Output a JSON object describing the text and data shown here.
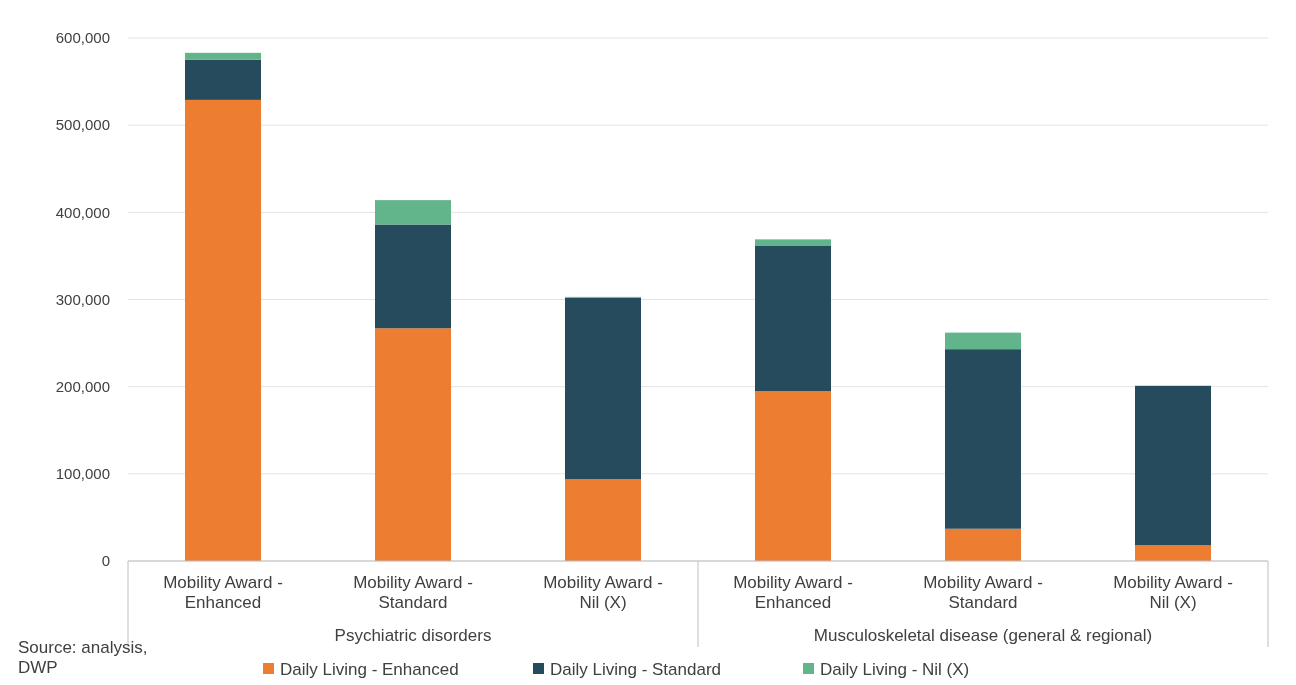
{
  "chart_data": {
    "type": "bar",
    "stacked": true,
    "categories": [
      "Mobility Award - Enhanced",
      "Mobility Award - Standard",
      "Mobility Award - Nil (X)",
      "Mobility Award - Enhanced",
      "Mobility Award - Standard",
      "Mobility Award - Nil (X)"
    ],
    "series": [
      {
        "name": "Daily Living - Enhanced",
        "color": "#ed7d31",
        "values": [
          529000,
          267000,
          94000,
          195000,
          37000,
          18000
        ]
      },
      {
        "name": "Daily Living - Standard",
        "color": "#264b5d",
        "values": [
          46000,
          119000,
          208000,
          167000,
          206000,
          183000
        ]
      },
      {
        "name": "Daily Living - Nil (X)",
        "color": "#62b58a",
        "values": [
          8000,
          28000,
          1000,
          7000,
          19000,
          0
        ]
      }
    ],
    "ylim": [
      0,
      600000
    ],
    "yticks": [
      {
        "value": 0,
        "label": "0"
      },
      {
        "value": 100000,
        "label": "100,000"
      },
      {
        "value": 200000,
        "label": "200,000"
      },
      {
        "value": 300000,
        "label": "300,000"
      },
      {
        "value": 400000,
        "label": "400,000"
      },
      {
        "value": 500000,
        "label": "500,000"
      },
      {
        "value": 600000,
        "label": "600,000"
      }
    ],
    "grid": "y",
    "legend": "bottom",
    "annotations": [
      "Psychiatric disorders",
      "Musculoskeletal disease (general & regional)",
      "Source: analysis, DWP"
    ]
  }
}
